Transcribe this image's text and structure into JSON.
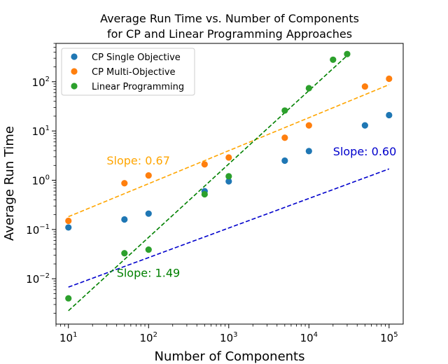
{
  "chart_data": {
    "type": "scatter",
    "title_lines": [
      "Average Run Time vs. Number of Components",
      "for CP and Linear Programming Approaches"
    ],
    "xlabel": "Number of Components",
    "ylabel": "Average Run Time",
    "xscale": "log",
    "yscale": "log",
    "xlim": [
      7,
      150000
    ],
    "ylim": [
      0.0012,
      600
    ],
    "x_major_ticks": [
      {
        "value": 10,
        "base": "10",
        "exp": "1"
      },
      {
        "value": 100,
        "base": "10",
        "exp": "2"
      },
      {
        "value": 1000,
        "base": "10",
        "exp": "3"
      },
      {
        "value": 10000,
        "base": "10",
        "exp": "4"
      },
      {
        "value": 100000,
        "base": "10",
        "exp": "5"
      }
    ],
    "y_major_ticks": [
      {
        "value": 0.01,
        "base": "10",
        "exp": "−2"
      },
      {
        "value": 0.1,
        "base": "10",
        "exp": "−1"
      },
      {
        "value": 1,
        "base": "10",
        "exp": "0"
      },
      {
        "value": 10,
        "base": "10",
        "exp": "1"
      },
      {
        "value": 100,
        "base": "10",
        "exp": "2"
      }
    ],
    "legend_position": "top-left",
    "series": [
      {
        "name": "CP Single Objective",
        "color": "#1f77b4",
        "points": [
          [
            10,
            0.11
          ],
          [
            50,
            0.16
          ],
          [
            100,
            0.21
          ],
          [
            500,
            0.6
          ],
          [
            1000,
            0.95
          ],
          [
            5000,
            2.5
          ],
          [
            10000,
            3.9
          ],
          [
            50000,
            13
          ],
          [
            100000,
            21
          ]
        ],
        "fit": {
          "slope": 0.6,
          "intercept_log10": -2.77,
          "x_range": [
            10,
            100000
          ],
          "color": "#0000cc"
        },
        "annotation": {
          "text": "Slope: 0.60",
          "color": "#0000cc"
        }
      },
      {
        "name": "CP Multi-Objective",
        "color": "#ff7f0e",
        "points": [
          [
            10,
            0.15
          ],
          [
            50,
            0.87
          ],
          [
            100,
            1.25
          ],
          [
            500,
            2.1
          ],
          [
            1000,
            2.9
          ],
          [
            5000,
            7.3
          ],
          [
            10000,
            13
          ],
          [
            50000,
            80
          ],
          [
            100000,
            115
          ]
        ],
        "fit": {
          "slope": 0.67,
          "intercept_log10": -1.41,
          "x_range": [
            10,
            100000
          ],
          "color": "#ffa500"
        },
        "annotation": {
          "text": "Slope: 0.67",
          "color": "#ffa500"
        }
      },
      {
        "name": "Linear Programming",
        "color": "#2ca02c",
        "points": [
          [
            10,
            0.004
          ],
          [
            50,
            0.033
          ],
          [
            100,
            0.039
          ],
          [
            500,
            0.52
          ],
          [
            1000,
            1.2
          ],
          [
            5000,
            26
          ],
          [
            10000,
            74
          ],
          [
            20000,
            280
          ],
          [
            30000,
            365
          ]
        ],
        "fit": {
          "slope": 1.49,
          "intercept_log10": -4.14,
          "x_range": [
            10,
            30000
          ],
          "color": "#008000"
        },
        "annotation": {
          "text": "Slope: 1.49",
          "color": "#008000"
        }
      }
    ]
  }
}
